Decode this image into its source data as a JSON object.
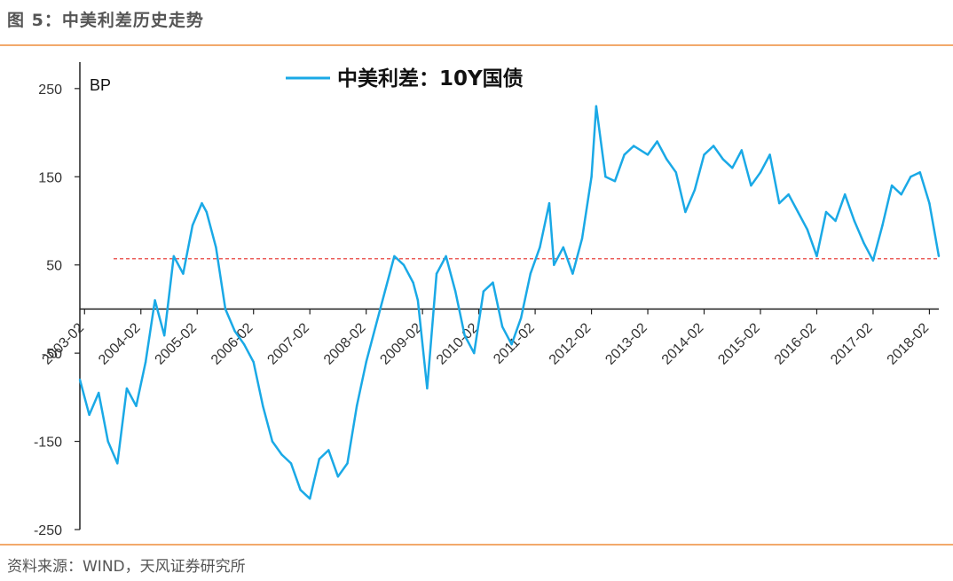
{
  "figure": {
    "title": "图 5：中美利差历史走势",
    "source": "资料来源：WIND，天风证券研究所"
  },
  "chart_data": {
    "type": "line",
    "unit_label": "BP",
    "legend_placement": "top-center",
    "ylim": [
      -250,
      280
    ],
    "y_ticks": [
      250,
      150,
      50,
      -50,
      -150,
      -250
    ],
    "x_ticks": [
      "2003-02",
      "2004-02",
      "2005-02",
      "2006-02",
      "2007-02",
      "2008-02",
      "2009-02",
      "2010-02",
      "2011-02",
      "2012-02",
      "2013-02",
      "2014-02",
      "2015-02",
      "2016-02",
      "2017-02",
      "2018-02"
    ],
    "x_range": [
      "2003-01",
      "2018-04"
    ],
    "reference_line": {
      "y": 57,
      "style": "dashed",
      "color": "#e8413c"
    },
    "series": [
      {
        "name": "中美利差：10Y国债",
        "color": "#1aa9e6",
        "points": [
          [
            "2003-01",
            -80
          ],
          [
            "2003-03",
            -120
          ],
          [
            "2003-05",
            -95
          ],
          [
            "2003-07",
            -150
          ],
          [
            "2003-09",
            -175
          ],
          [
            "2003-11",
            -90
          ],
          [
            "2004-01",
            -110
          ],
          [
            "2004-03",
            -60
          ],
          [
            "2004-05",
            10
          ],
          [
            "2004-07",
            -30
          ],
          [
            "2004-09",
            60
          ],
          [
            "2004-11",
            40
          ],
          [
            "2005-01",
            95
          ],
          [
            "2005-03",
            120
          ],
          [
            "2005-04",
            110
          ],
          [
            "2005-06",
            70
          ],
          [
            "2005-08",
            0
          ],
          [
            "2005-10",
            -25
          ],
          [
            "2005-12",
            -40
          ],
          [
            "2006-02",
            -60
          ],
          [
            "2006-04",
            -110
          ],
          [
            "2006-06",
            -150
          ],
          [
            "2006-08",
            -165
          ],
          [
            "2006-10",
            -175
          ],
          [
            "2006-12",
            -205
          ],
          [
            "2007-02",
            -215
          ],
          [
            "2007-04",
            -170
          ],
          [
            "2007-06",
            -160
          ],
          [
            "2007-08",
            -190
          ],
          [
            "2007-10",
            -175
          ],
          [
            "2007-12",
            -110
          ],
          [
            "2008-02",
            -60
          ],
          [
            "2008-04",
            -20
          ],
          [
            "2008-06",
            20
          ],
          [
            "2008-08",
            60
          ],
          [
            "2008-10",
            50
          ],
          [
            "2008-12",
            30
          ],
          [
            "2009-01",
            10
          ],
          [
            "2009-03",
            -90
          ],
          [
            "2009-05",
            40
          ],
          [
            "2009-07",
            60
          ],
          [
            "2009-09",
            20
          ],
          [
            "2009-11",
            -30
          ],
          [
            "2010-01",
            -50
          ],
          [
            "2010-03",
            20
          ],
          [
            "2010-05",
            30
          ],
          [
            "2010-07",
            -20
          ],
          [
            "2010-09",
            -40
          ],
          [
            "2010-11",
            -10
          ],
          [
            "2011-01",
            40
          ],
          [
            "2011-03",
            70
          ],
          [
            "2011-05",
            120
          ],
          [
            "2011-06",
            50
          ],
          [
            "2011-08",
            70
          ],
          [
            "2011-10",
            40
          ],
          [
            "2011-12",
            80
          ],
          [
            "2012-02",
            150
          ],
          [
            "2012-03",
            230
          ],
          [
            "2012-05",
            150
          ],
          [
            "2012-07",
            145
          ],
          [
            "2012-09",
            175
          ],
          [
            "2012-11",
            185
          ],
          [
            "2013-02",
            175
          ],
          [
            "2013-04",
            190
          ],
          [
            "2013-06",
            170
          ],
          [
            "2013-08",
            155
          ],
          [
            "2013-10",
            110
          ],
          [
            "2013-12",
            135
          ],
          [
            "2014-02",
            175
          ],
          [
            "2014-04",
            185
          ],
          [
            "2014-06",
            170
          ],
          [
            "2014-08",
            160
          ],
          [
            "2014-10",
            180
          ],
          [
            "2014-12",
            140
          ],
          [
            "2015-02",
            155
          ],
          [
            "2015-04",
            175
          ],
          [
            "2015-06",
            120
          ],
          [
            "2015-08",
            130
          ],
          [
            "2015-10",
            110
          ],
          [
            "2015-12",
            90
          ],
          [
            "2016-02",
            60
          ],
          [
            "2016-04",
            110
          ],
          [
            "2016-06",
            100
          ],
          [
            "2016-08",
            130
          ],
          [
            "2016-10",
            100
          ],
          [
            "2016-12",
            75
          ],
          [
            "2017-02",
            55
          ],
          [
            "2017-04",
            95
          ],
          [
            "2017-06",
            140
          ],
          [
            "2017-08",
            130
          ],
          [
            "2017-10",
            150
          ],
          [
            "2017-12",
            155
          ],
          [
            "2018-02",
            120
          ],
          [
            "2018-03",
            90
          ],
          [
            "2018-04",
            60
          ]
        ]
      }
    ]
  }
}
